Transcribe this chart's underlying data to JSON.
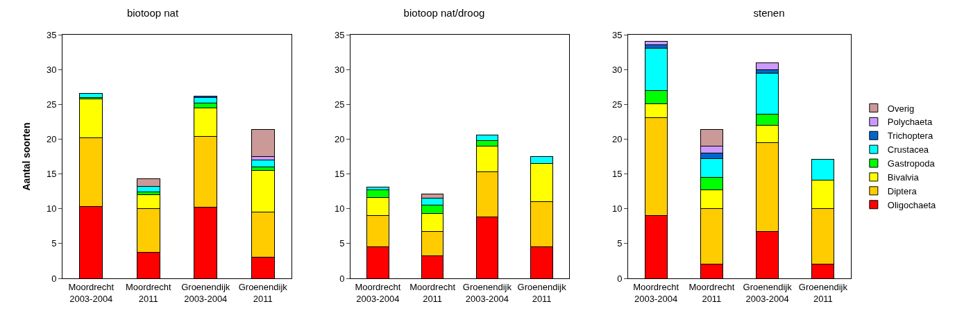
{
  "chart_data": [
    {
      "type": "bar",
      "title": "biotoop nat",
      "ylabel": "Aantal soorten",
      "categories": [
        "Moordrecht\n2003-2004",
        "Moordrecht\n2011",
        "Groenendijk\n2003-2004",
        "Groenendijk\n2011"
      ],
      "stacked": true,
      "ylim": [
        0,
        35
      ],
      "yticks": [
        0,
        5,
        10,
        15,
        20,
        25,
        30,
        35
      ],
      "grid": false,
      "legend": false,
      "series": [
        {
          "color": "#ff0000",
          "values": [
            10.3,
            3.7,
            10.2,
            3.0
          ]
        },
        {
          "color": "#ffcc00",
          "values": [
            9.9,
            6.3,
            10.2,
            6.5
          ]
        },
        {
          "color": "#ffff00",
          "values": [
            5.6,
            2.0,
            4.1,
            6.0
          ]
        },
        {
          "color": "#00ff00",
          "values": [
            0.2,
            0.4,
            0.7,
            0.5
          ]
        },
        {
          "color": "#00ffff",
          "values": [
            0.6,
            0.8,
            0.8,
            1.0
          ]
        },
        {
          "color": "#0066cc",
          "values": [
            null,
            null,
            0.2,
            null
          ]
        },
        {
          "color": "#cc99ff",
          "values": [
            null,
            null,
            null,
            0.5
          ]
        },
        {
          "color": "#cc9999",
          "values": [
            null,
            1.1,
            null,
            3.9
          ]
        }
      ]
    },
    {
      "type": "bar",
      "title": "biotoop nat/droog",
      "categories": [
        "Moordrecht\n2003-2004",
        "Moordrecht\n2011",
        "Groenendijk\n2003-2004",
        "Groenendijk\n2011"
      ],
      "stacked": true,
      "ylim": [
        0,
        35
      ],
      "yticks": [
        0,
        5,
        10,
        15,
        20,
        25,
        30,
        35
      ],
      "grid": false,
      "legend": false,
      "series": [
        {
          "color": "#ff0000",
          "values": [
            4.5,
            3.2,
            8.8,
            4.5
          ]
        },
        {
          "color": "#ffcc00",
          "values": [
            4.5,
            3.5,
            6.5,
            6.5
          ]
        },
        {
          "color": "#ffff00",
          "values": [
            2.6,
            2.6,
            3.7,
            5.5
          ]
        },
        {
          "color": "#00ff00",
          "values": [
            1.1,
            1.2,
            0.8,
            null
          ]
        },
        {
          "color": "#00ffff",
          "values": [
            0.4,
            1.0,
            0.8,
            1.0
          ]
        },
        {
          "color": "#cc9999",
          "values": [
            null,
            0.6,
            null,
            null
          ]
        }
      ]
    },
    {
      "type": "bar",
      "title": "stenen",
      "categories": [
        "Moordrecht\n2003-2004",
        "Moordrecht\n2011",
        "Groenendijk\n2003-2004",
        "Groenendijk\n2011"
      ],
      "stacked": true,
      "ylim": [
        0,
        35
      ],
      "yticks": [
        0,
        5,
        10,
        15,
        20,
        25,
        30,
        35
      ],
      "grid": false,
      "legend": "right",
      "series": [
        {
          "name": "Oligochaeta",
          "color": "#ff0000",
          "values": [
            9.0,
            2.0,
            6.7,
            2.0
          ]
        },
        {
          "name": "Diptera",
          "color": "#ffcc00",
          "values": [
            14.1,
            8.0,
            12.8,
            8.0
          ]
        },
        {
          "name": "Bivalvia",
          "color": "#ffff00",
          "values": [
            2.0,
            2.7,
            2.5,
            4.1
          ]
        },
        {
          "name": "Gastropoda",
          "color": "#00ff00",
          "values": [
            1.9,
            1.8,
            1.6,
            null
          ]
        },
        {
          "name": "Crustacea",
          "color": "#00ffff",
          "values": [
            6.1,
            2.7,
            5.9,
            3.0
          ]
        },
        {
          "name": "Trichoptera",
          "color": "#0066cc",
          "values": [
            0.5,
            0.8,
            0.5,
            null
          ]
        },
        {
          "name": "Polychaeta",
          "color": "#cc99ff",
          "values": [
            0.5,
            1.0,
            1.0,
            null
          ]
        },
        {
          "name": "Overig",
          "color": "#cc9999",
          "values": [
            null,
            2.4,
            null,
            null
          ]
        }
      ]
    }
  ]
}
